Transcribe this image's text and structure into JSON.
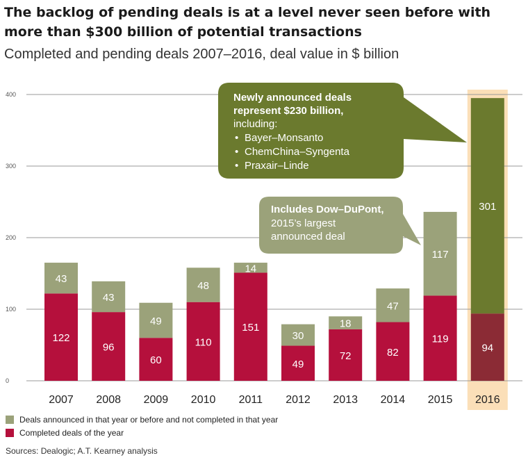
{
  "title": "The backlog of pending deals is at a level never seen before with more than $300 billion of potential transactions",
  "subtitle": "Completed and pending deals 2007–2016, deal value in $ billion",
  "colors": {
    "pending": "#9ba27a",
    "completed": "#b5103c",
    "pending_2016": "#6b7a2e",
    "completed_2016": "#8b2b35",
    "highlight": "#fbdfb8",
    "callout_dark": "#6b7a2e",
    "callout_light": "#9ba27a",
    "grid": "#999999"
  },
  "chart_data": {
    "type": "bar",
    "stacked": true,
    "categories": [
      "2007",
      "2008",
      "2009",
      "2010",
      "2011",
      "2012",
      "2013",
      "2014",
      "2015",
      "2016"
    ],
    "series": [
      {
        "name": "Completed deals of the year",
        "values": [
          122,
          96,
          60,
          110,
          151,
          49,
          72,
          82,
          119,
          94
        ]
      },
      {
        "name": "Deals announced in that year or before and not completed in that year",
        "values": [
          43,
          43,
          49,
          48,
          14,
          30,
          18,
          47,
          117,
          301
        ]
      }
    ],
    "ylim": [
      0,
      400
    ],
    "yticks": [
      0,
      100,
      200,
      300,
      400
    ],
    "grid": true,
    "highlighted_category": "2016"
  },
  "annotations": {
    "callout_2016": {
      "bold": [
        "Newly announced deals",
        "represent $230 billion,"
      ],
      "line": "including:",
      "bullets": [
        "Bayer–Monsanto",
        "ChemChina–Syngenta",
        "Praxair–Linde"
      ]
    },
    "callout_2015": {
      "bold": "Includes Dow–DuPont,",
      "lines": [
        "2015’s largest",
        "announced deal"
      ]
    }
  },
  "legend": {
    "pending_label": "Deals announced in that year or before and not completed in that year",
    "completed_label": "Completed deals of the year"
  },
  "source": "Sources: Dealogic; A.T. Kearney analysis"
}
